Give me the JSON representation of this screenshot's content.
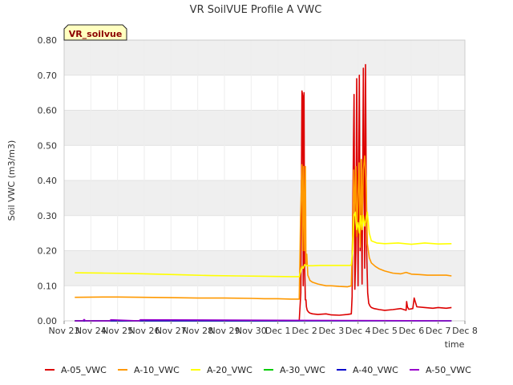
{
  "chart_data": {
    "type": "line",
    "title": "VR SoilVUE Profile A VWC",
    "xlabel": "time",
    "ylabel": "Soil VWC (m3/m3)",
    "station_tag": "VR_soilvue",
    "x_unit": "days since Nov 23 00:00",
    "xlim": [
      0,
      15
    ],
    "ylim": [
      0,
      0.8
    ],
    "y_ticks": [
      "0.00",
      "0.10",
      "0.20",
      "0.30",
      "0.40",
      "0.50",
      "0.60",
      "0.70",
      "0.80"
    ],
    "x_ticks": [
      "Nov 23",
      "Nov 24",
      "Nov 25",
      "Nov 26",
      "Nov 27",
      "Nov 28",
      "Nov 29",
      "Nov 30",
      "Dec 1",
      "Dec 2",
      "Dec 3",
      "Dec 4",
      "Dec 5",
      "Dec 6",
      "Dec 7",
      "Dec 8"
    ],
    "grid": true,
    "legend_position": "bottom",
    "series": [
      {
        "name": "A-05_VWC",
        "color": "#dd0000",
        "x": [
          0.4,
          8.5,
          8.8,
          8.86,
          8.9,
          8.93,
          8.95,
          8.98,
          9.0,
          9.03,
          9.05,
          9.07,
          9.1,
          9.15,
          9.2,
          9.3,
          9.5,
          9.8,
          10.0,
          10.3,
          10.6,
          10.75,
          10.78,
          10.8,
          10.85,
          10.88,
          10.92,
          10.95,
          11.0,
          11.05,
          11.08,
          11.12,
          11.15,
          11.2,
          11.25,
          11.28,
          11.32,
          11.36,
          11.4,
          11.45,
          11.5,
          11.6,
          11.8,
          12.0,
          12.3,
          12.6,
          12.8,
          12.82,
          12.85,
          12.9,
          13.05,
          13.1,
          13.2,
          13.5,
          13.8,
          14.0,
          14.3,
          14.5
        ],
        "y": [
          0.0,
          0.0,
          0.0,
          0.08,
          0.655,
          0.64,
          0.1,
          0.65,
          0.16,
          0.06,
          0.06,
          0.04,
          0.03,
          0.025,
          0.022,
          0.02,
          0.018,
          0.02,
          0.017,
          0.016,
          0.018,
          0.02,
          0.07,
          0.3,
          0.645,
          0.09,
          0.2,
          0.69,
          0.1,
          0.7,
          0.2,
          0.4,
          0.105,
          0.72,
          0.15,
          0.73,
          0.21,
          0.08,
          0.05,
          0.042,
          0.038,
          0.035,
          0.032,
          0.03,
          0.032,
          0.035,
          0.03,
          0.055,
          0.04,
          0.033,
          0.035,
          0.065,
          0.04,
          0.038,
          0.036,
          0.038,
          0.036,
          0.038
        ]
      },
      {
        "name": "A-10_VWC",
        "color": "#ff9900",
        "x": [
          0.4,
          1.5,
          2.0,
          3.0,
          4.0,
          5.0,
          6.0,
          7.0,
          7.5,
          8.0,
          8.5,
          8.8,
          8.85,
          8.9,
          8.93,
          8.96,
          9.0,
          9.03,
          9.05,
          9.08,
          9.12,
          9.2,
          9.3,
          9.5,
          9.8,
          10.0,
          10.3,
          10.6,
          10.75,
          10.8,
          10.84,
          10.88,
          10.92,
          10.96,
          11.0,
          11.04,
          11.08,
          11.12,
          11.16,
          11.2,
          11.25,
          11.3,
          11.35,
          11.42,
          11.5,
          11.65,
          11.8,
          12.0,
          12.3,
          12.6,
          12.8,
          13.0,
          13.3,
          13.6,
          14.0,
          14.3,
          14.5
        ],
        "y": [
          0.067,
          0.068,
          0.068,
          0.067,
          0.066,
          0.065,
          0.065,
          0.064,
          0.063,
          0.063,
          0.062,
          0.062,
          0.3,
          0.445,
          0.2,
          0.44,
          0.2,
          0.44,
          0.16,
          0.19,
          0.13,
          0.115,
          0.11,
          0.105,
          0.1,
          0.1,
          0.098,
          0.097,
          0.1,
          0.25,
          0.43,
          0.3,
          0.44,
          0.24,
          0.36,
          0.45,
          0.21,
          0.46,
          0.28,
          0.43,
          0.47,
          0.4,
          0.22,
          0.18,
          0.165,
          0.155,
          0.148,
          0.142,
          0.136,
          0.134,
          0.138,
          0.133,
          0.132,
          0.13,
          0.13,
          0.13,
          0.128
        ]
      },
      {
        "name": "A-20_VWC",
        "color": "#ffff00",
        "x": [
          0.4,
          1.5,
          2.5,
          3.5,
          4.5,
          5.5,
          6.5,
          7.5,
          8.5,
          8.8,
          8.85,
          8.9,
          8.95,
          9.0,
          9.05,
          9.1,
          9.3,
          9.6,
          10.0,
          10.4,
          10.7,
          10.75,
          10.8,
          10.85,
          10.9,
          10.95,
          11.0,
          11.05,
          11.1,
          11.15,
          11.2,
          11.25,
          11.3,
          11.35,
          11.42,
          11.5,
          11.7,
          12.0,
          12.5,
          13.0,
          13.5,
          14.0,
          14.5
        ],
        "y": [
          0.137,
          0.136,
          0.135,
          0.133,
          0.131,
          0.129,
          0.128,
          0.127,
          0.126,
          0.126,
          0.14,
          0.155,
          0.15,
          0.16,
          0.158,
          0.157,
          0.157,
          0.158,
          0.158,
          0.158,
          0.158,
          0.16,
          0.2,
          0.3,
          0.31,
          0.26,
          0.28,
          0.25,
          0.3,
          0.26,
          0.3,
          0.27,
          0.29,
          0.31,
          0.25,
          0.228,
          0.222,
          0.22,
          0.222,
          0.218,
          0.222,
          0.219,
          0.22
        ]
      },
      {
        "name": "A-30_VWC",
        "color": "#00cc00",
        "x": [
          0.4,
          14.5
        ],
        "y": [
          0.0,
          0.0
        ]
      },
      {
        "name": "A-40_VWC",
        "color": "#0000cc",
        "x": [
          0.4,
          14.5
        ],
        "y": [
          0.0,
          0.0
        ]
      },
      {
        "name": "A-50_VWC",
        "color": "#9900cc",
        "x": [
          0.4,
          0.7,
          0.75,
          0.8,
          1.7,
          1.75,
          2.8,
          2.85,
          14.5
        ],
        "y": [
          0.0,
          0.0,
          0.004,
          0.0,
          0.0,
          0.003,
          0.0,
          0.003,
          0.0
        ]
      }
    ]
  }
}
